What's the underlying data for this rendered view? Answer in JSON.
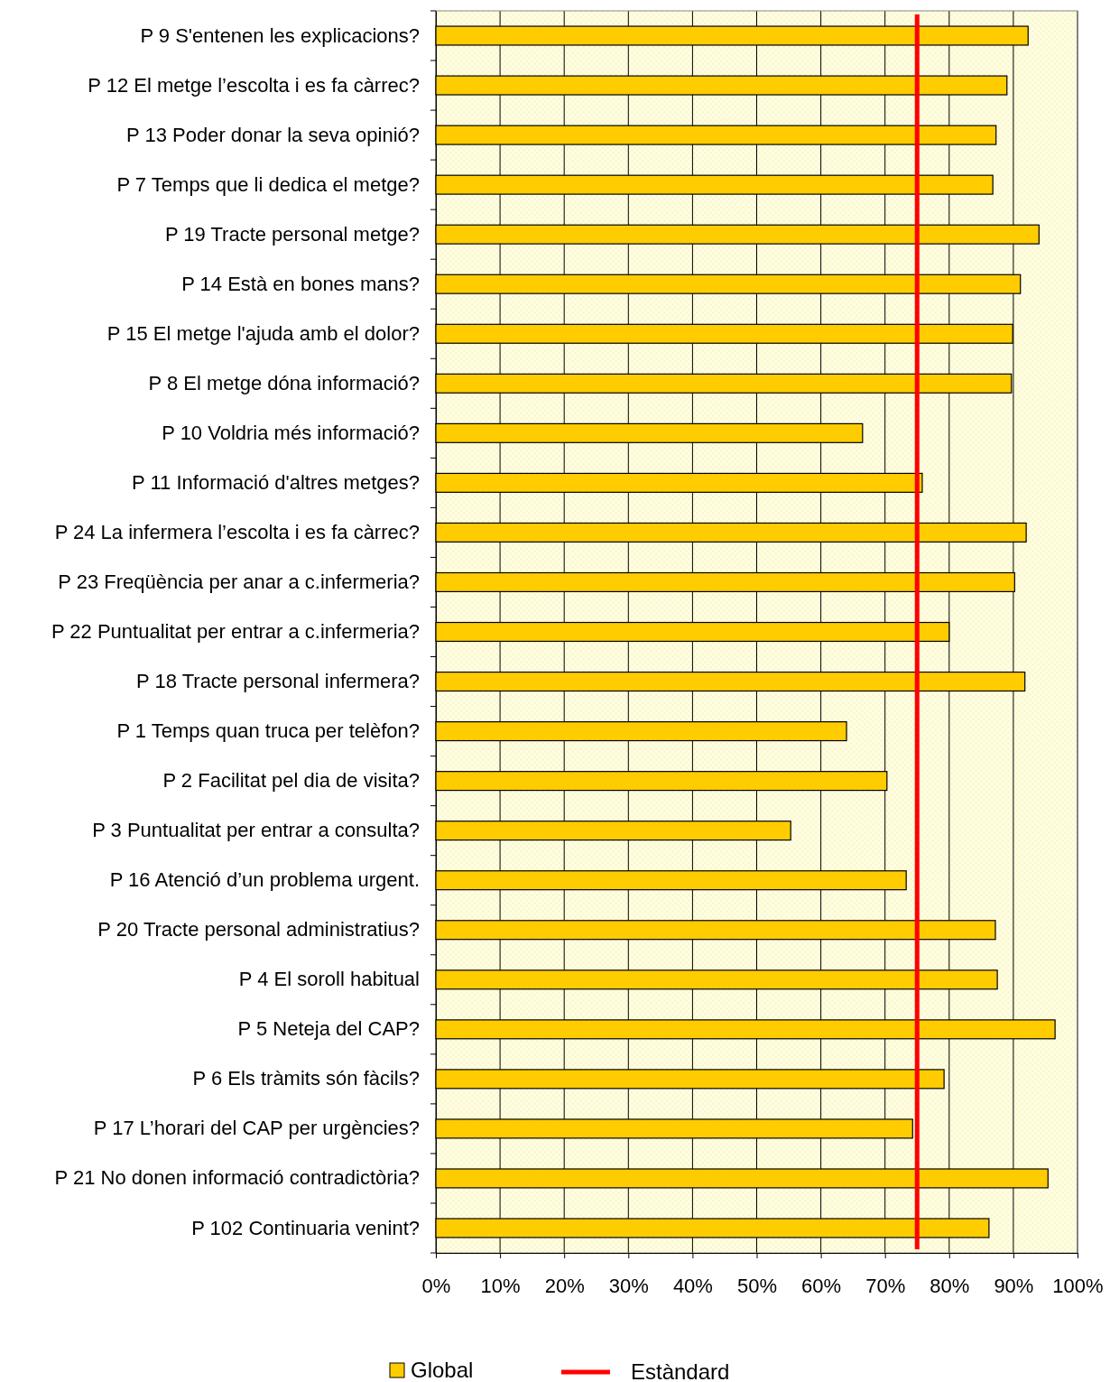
{
  "chart_data": {
    "type": "bar",
    "orientation": "horizontal",
    "categories": [
      "P 9 S'entenen les explicacions?",
      "P 12 El metge l’escolta i es fa càrrec?",
      "P 13 Poder donar la seva opinió?",
      "P 7 Temps que li dedica el metge?",
      "P 19 Tracte personal metge?",
      "P 14  Està en bones mans?",
      "P 15 El metge l'ajuda amb el dolor?",
      "P 8  El metge dóna informació?",
      "P 10 Voldria més informació?",
      "P 11 Informació d'altres metges?",
      "P 24 La infermera l’escolta i es fa càrrec?",
      "P 23 Freqüència per anar a c.infermeria?",
      "P 22 Puntualitat per entrar a c.infermeria?",
      "P 18 Tracte personal infermera?",
      "P 1 Temps quan truca per telèfon?",
      "P 2 Facilitat pel dia de visita?",
      "P 3 Puntualitat per entrar a consulta?",
      "P 16 Atenció d’un problema urgent.",
      "P 20 Tracte personal administratius?",
      "P 4 El soroll habitual",
      "P 5 Neteja del CAP?",
      "P 6  Els tràmits són fàcils?",
      "P 17 L’horari del CAP per urgències?",
      "P 21 No donen informació contradictòria?",
      "P 102 Continuaria venint?"
    ],
    "series": [
      {
        "name": "Global",
        "color": "#ffcc00",
        "values": [
          92.3,
          89,
          87.3,
          86.8,
          94,
          91.1,
          89.9,
          89.7,
          66.5,
          75.8,
          92,
          90.2,
          80,
          91.8,
          64,
          70.3,
          55.3,
          73.3,
          87.2,
          87.5,
          96.5,
          79.2,
          74.3,
          95.4,
          86.2
        ]
      }
    ],
    "xlim": [
      0,
      100
    ],
    "xticks": [
      {
        "value": 0,
        "label": "0%"
      },
      {
        "value": 10,
        "label": "10%"
      },
      {
        "value": 20,
        "label": "20%"
      },
      {
        "value": 30,
        "label": "30%"
      },
      {
        "value": 40,
        "label": "40%"
      },
      {
        "value": 50,
        "label": "50%"
      },
      {
        "value": 60,
        "label": "60%"
      },
      {
        "value": 70,
        "label": "70%"
      },
      {
        "value": 80,
        "label": "80%"
      },
      {
        "value": 90,
        "label": "90%"
      },
      {
        "value": 100,
        "label": "100%"
      }
    ],
    "ref_lines": [
      {
        "axis": "x",
        "value": 75,
        "label": "Estàndard",
        "color": "#ff0000"
      }
    ],
    "grid": "x",
    "legend": "bottom"
  }
}
